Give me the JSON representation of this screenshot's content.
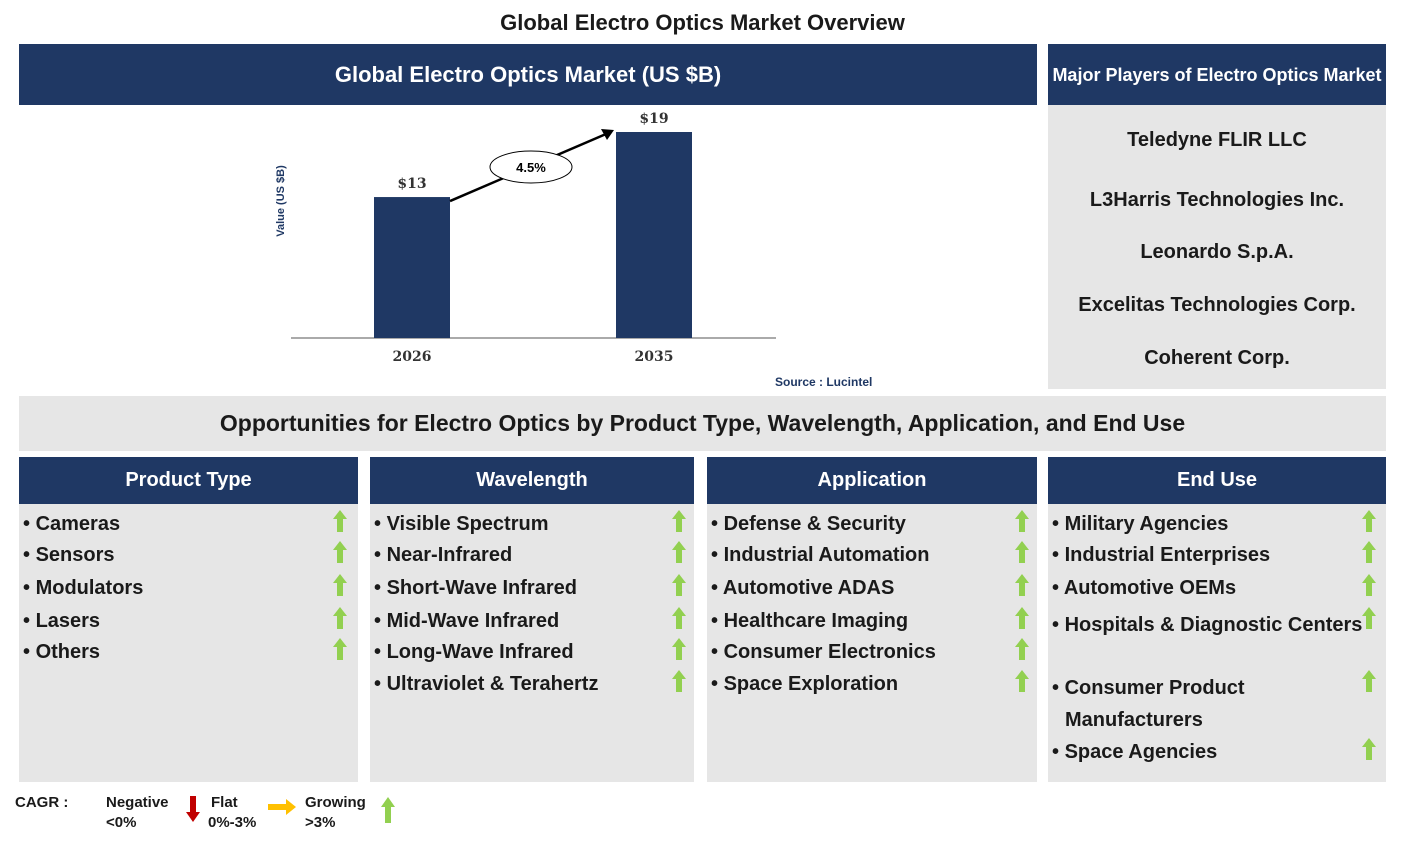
{
  "page_title": "Global Electro Optics Market Overview",
  "chart_header": "Global Electro Optics Market (US $B)",
  "chart_data": {
    "type": "bar",
    "categories": [
      "2026",
      "2035"
    ],
    "values": [
      13,
      19
    ],
    "value_labels": [
      "$13",
      "$19"
    ],
    "ylabel": "Value (US $B)",
    "cagr_label": "4.5%",
    "color": "#1f3864"
  },
  "source": "Source : Lucintel",
  "players": {
    "title": "Major Players of Electro Optics Market",
    "items": [
      "Teledyne FLIR LLC",
      "L3Harris Technologies Inc.",
      "Leonardo S.p.A.",
      "Excelitas Technologies Corp.",
      "Coherent Corp."
    ]
  },
  "opportunities_title": "Opportunities for Electro Optics by Product Type, Wavelength, Application, and End Use",
  "columns": [
    {
      "title": "Product Type",
      "items": [
        "Cameras",
        "Sensors",
        "Modulators",
        "Lasers",
        "Others"
      ]
    },
    {
      "title": "Wavelength",
      "items": [
        "Visible Spectrum",
        "Near-Infrared",
        "Short-Wave Infrared",
        "Mid-Wave Infrared",
        "Long-Wave Infrared",
        "Ultraviolet & Terahertz"
      ]
    },
    {
      "title": "Application",
      "items": [
        "Defense & Security",
        "Industrial Automation",
        "Automotive ADAS",
        "Healthcare Imaging",
        "Consumer Electronics",
        "Space Exploration"
      ]
    },
    {
      "title": "End Use",
      "items": [
        "Military Agencies",
        "Industrial Enterprises",
        "Automotive OEMs",
        "Hospitals & Diagnostic Centers",
        "Consumer Product Manufacturers",
        "Space Agencies"
      ]
    }
  ],
  "legend": {
    "cagr": "CAGR :",
    "negative": "Negative",
    "negative_range": "<0%",
    "flat": "Flat",
    "flat_range": "0%-3%",
    "growing": "Growing",
    "growing_range": ">3%",
    "colors": {
      "negative": "#c00000",
      "flat": "#ffc000",
      "growing": "#92d050"
    }
  }
}
